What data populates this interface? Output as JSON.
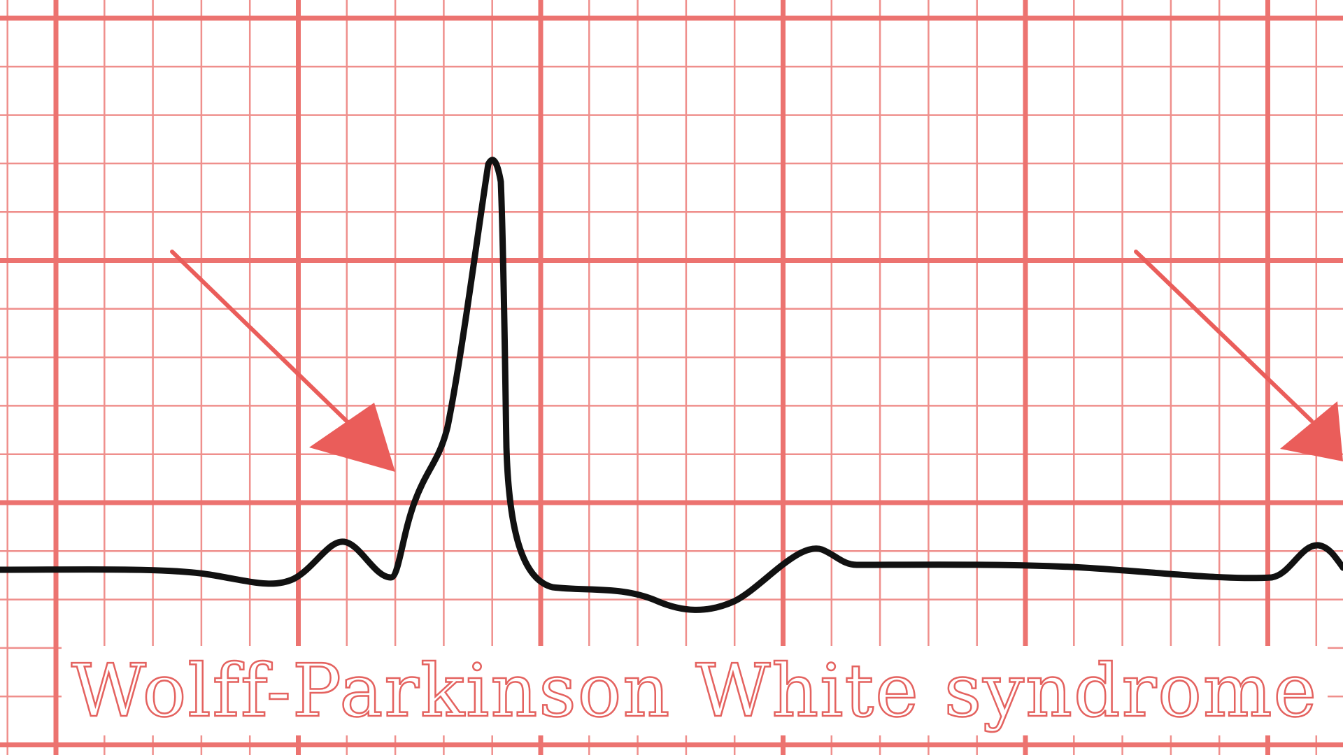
{
  "caption": "Wolff-Parkinson White syndrome",
  "colors": {
    "grid": "#ef8f8c",
    "grid_major": "#ec7370",
    "trace": "#111111",
    "arrow": "#ea5d5a",
    "caption": "#e4625f",
    "background": "#ffffff"
  },
  "annotations": [
    {
      "type": "arrow",
      "points_to": "delta-wave"
    },
    {
      "type": "arrow",
      "points_to": "next-beat-delta-wave"
    }
  ]
}
